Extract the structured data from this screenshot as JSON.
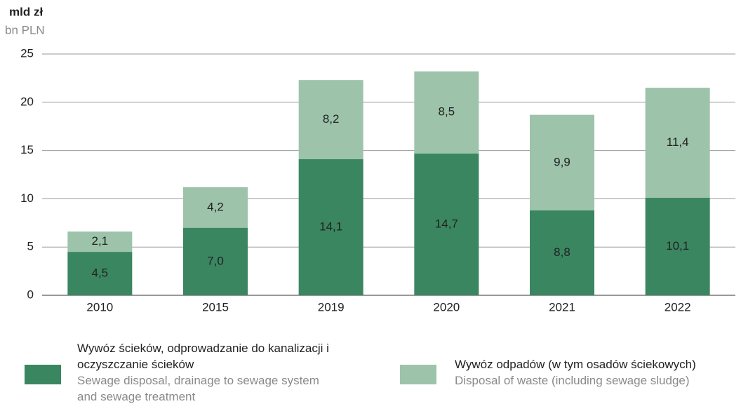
{
  "chart_data": {
    "type": "stacked_bar",
    "y_label": "mld zł",
    "y_label_en": "bn PLN",
    "categories": [
      "2010",
      "2015",
      "2019",
      "2020",
      "2021",
      "2022"
    ],
    "ylim": [
      0,
      25
    ],
    "yticks": [
      0,
      5,
      10,
      15,
      20,
      25
    ],
    "grid": true,
    "series": [
      {
        "name": "Wywóz ścieków, odprowadzanie do kanalizacji i oczyszczanie ścieków",
        "name_en": "Sewage disposal, drainage to sewage system and sewage treatment",
        "color": "#3a8660",
        "values": [
          4.5,
          7.0,
          14.1,
          14.7,
          8.8,
          10.1
        ],
        "value_labels": [
          "4,5",
          "7,0",
          "14,1",
          "14,7",
          "8,8",
          "10,1"
        ]
      },
      {
        "name": "Wywóz odpadów (w tym osadów ściekowych)",
        "name_en": "Disposal of waste (including sewage sludge)",
        "color": "#9dc3ab",
        "values": [
          2.1,
          4.2,
          8.2,
          8.5,
          9.9,
          11.4
        ],
        "value_labels": [
          "2,1",
          "4,2",
          "8,2",
          "8,5",
          "9,9",
          "11,4"
        ]
      }
    ]
  }
}
